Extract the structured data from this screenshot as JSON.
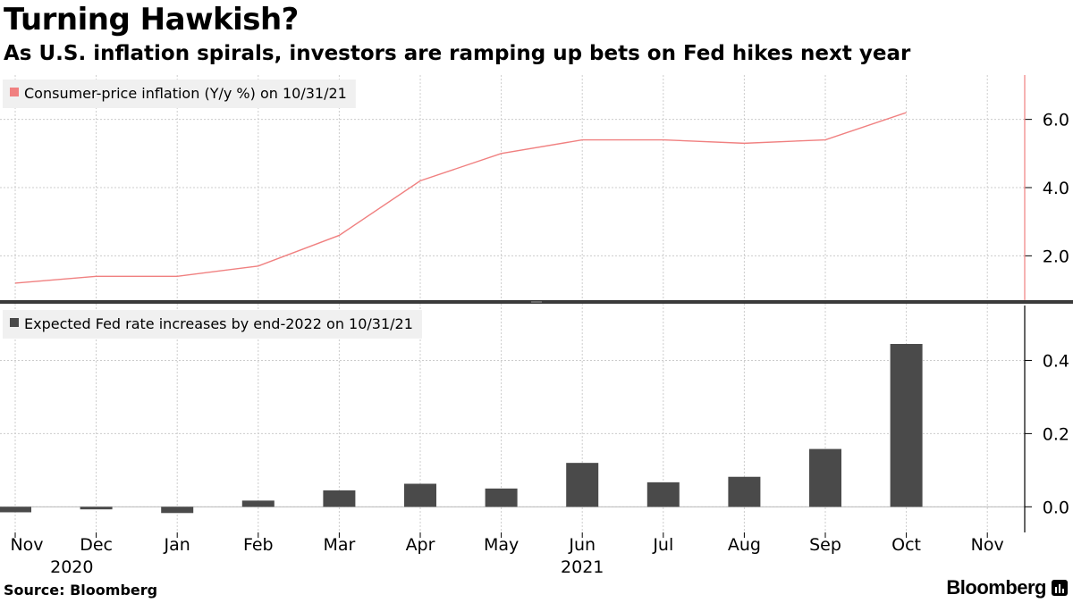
{
  "header": {
    "title": "Turning Hawkish?",
    "subtitle": "As U.S. inflation spirals, investors are ramping up bets on Fed hikes next year"
  },
  "footer": {
    "source": "Source: Bloomberg",
    "brand": "Bloomberg"
  },
  "chart_data": [
    {
      "type": "line",
      "title": "",
      "legend": "Consumer-price inflation (Y/y %) on 10/31/21",
      "legend_position": "top-left",
      "color": "#f08080",
      "categories": [
        "Nov",
        "Dec",
        "Jan",
        "Feb",
        "Mar",
        "Apr",
        "May",
        "Jun",
        "Jul",
        "Aug",
        "Sep",
        "Oct",
        "Nov"
      ],
      "values": [
        1.2,
        1.4,
        1.4,
        1.7,
        2.6,
        4.2,
        5.0,
        5.4,
        5.4,
        5.3,
        5.4,
        6.2,
        null
      ],
      "ylim": [
        0.7,
        7.3
      ],
      "yticks": [
        2.0,
        4.0,
        6.0
      ],
      "ytick_labels": [
        "2.0",
        "4.0",
        "6.0"
      ],
      "y_axis_position": "right",
      "grid": true
    },
    {
      "type": "bar",
      "title": "",
      "legend": "Expected Fed rate increases by end-2022 on 10/31/21",
      "legend_position": "top-left",
      "color": "#4a4a4a",
      "categories": [
        "Nov",
        "Dec",
        "Jan",
        "Feb",
        "Mar",
        "Apr",
        "May",
        "Jun",
        "Jul",
        "Aug",
        "Sep",
        "Oct",
        "Nov"
      ],
      "values": [
        -0.015,
        -0.007,
        -0.017,
        0.017,
        0.045,
        0.063,
        0.05,
        0.12,
        0.067,
        0.082,
        0.158,
        0.445,
        null
      ],
      "ylim": [
        -0.07,
        0.55
      ],
      "yticks": [
        0.0,
        0.2,
        0.4
      ],
      "ytick_labels": [
        "0.0",
        "0.2",
        "0.4"
      ],
      "y_axis_position": "right",
      "grid": true
    }
  ],
  "x_axis": {
    "month_labels": [
      "Nov",
      "Dec",
      "Jan",
      "Feb",
      "Mar",
      "Apr",
      "May",
      "Jun",
      "Jul",
      "Aug",
      "Sep",
      "Oct",
      "Nov"
    ],
    "year_labels": [
      {
        "text": "2020",
        "index": 0.5
      },
      {
        "text": "2021",
        "index": 7
      }
    ]
  }
}
